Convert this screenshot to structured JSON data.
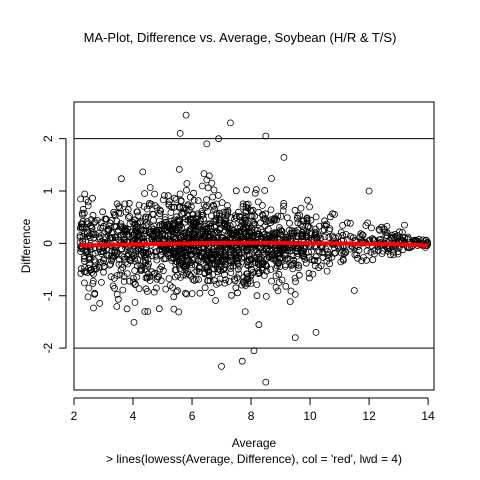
{
  "chart_data": {
    "type": "scatter",
    "title": "MA-Plot, Difference vs. Average, Soybean (H/R & T/S)",
    "xlabel": "Average",
    "ylabel": "Difference",
    "subtitle": "> lines(lowess(Average, Difference), col = 'red', lwd = 4)",
    "xlim": [
      2,
      14.2
    ],
    "ylim": [
      -2.8,
      2.7
    ],
    "x_ticks": [
      2,
      4,
      6,
      8,
      10,
      12,
      14
    ],
    "y_ticks": [
      -2,
      -1,
      0,
      1,
      2
    ],
    "reference_lines_y": [
      -2,
      2
    ],
    "point_color": "#000000",
    "lowess": {
      "color": "#ff0000",
      "x": [
        2.2,
        3,
        4,
        5,
        6,
        7,
        8,
        9,
        10,
        11,
        12,
        13,
        14
      ],
      "y": [
        -0.04,
        -0.03,
        -0.02,
        -0.01,
        0.0,
        0.01,
        0.01,
        0.01,
        0.0,
        0.0,
        -0.01,
        -0.02,
        -0.04
      ]
    },
    "outliers": {
      "x": [
        5.8,
        7.3,
        8.5,
        7.0,
        8.1,
        8.5,
        5.6,
        4.5,
        3.0,
        6.5,
        10.2,
        12.0,
        13.2,
        3.8,
        4.4,
        9.5,
        11.5,
        6.9,
        7.7
      ],
      "y": [
        2.45,
        2.3,
        2.05,
        -2.35,
        -2.05,
        -2.65,
        2.1,
        -1.3,
        -0.55,
        1.9,
        -1.7,
        1.0,
        0.35,
        -1.25,
        -1.3,
        -1.8,
        -0.9,
        2.0,
        -2.25
      ]
    },
    "cloud": {
      "n": 1800,
      "x_range": [
        2.2,
        14.0
      ],
      "x_center": 6.5,
      "sd_max": 0.5,
      "sd_min": 0.05
    }
  }
}
